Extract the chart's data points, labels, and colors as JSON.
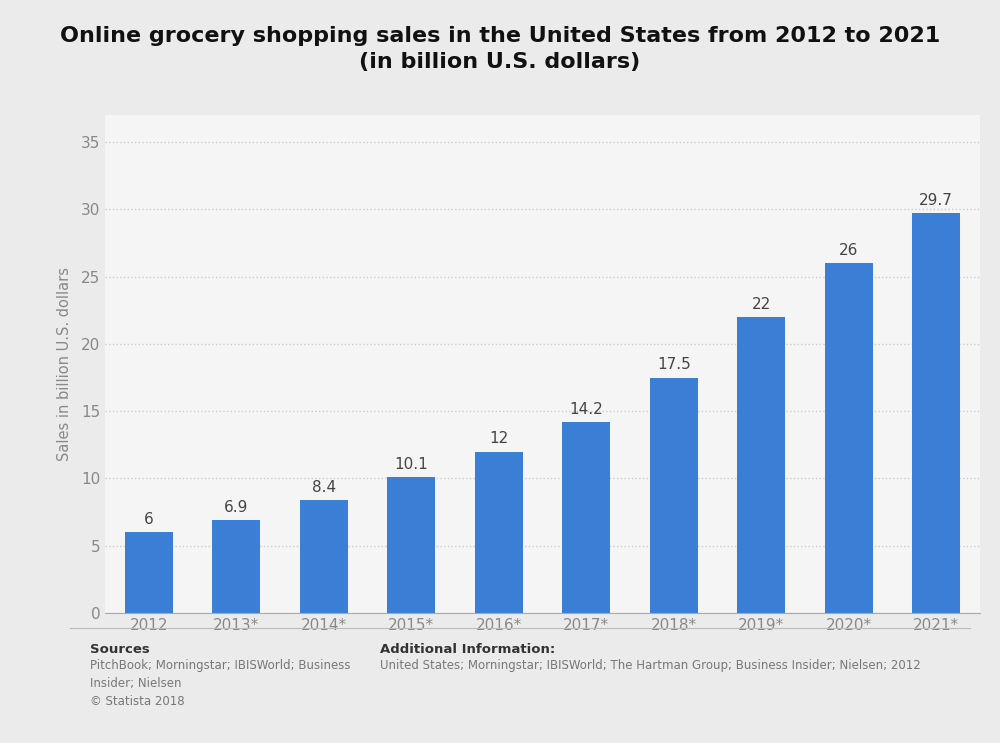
{
  "title_line1": "Online grocery shopping sales in the United States from 2012 to 2021",
  "title_line2": "(in billion U.S. dollars)",
  "categories": [
    "2012",
    "2013*",
    "2014*",
    "2015*",
    "2016*",
    "2017*",
    "2018*",
    "2019*",
    "2020*",
    "2021*"
  ],
  "values": [
    6,
    6.9,
    8.4,
    10.1,
    12,
    14.2,
    17.5,
    22,
    26,
    29.7
  ],
  "bar_color": "#3a7fd5",
  "background_color": "#ebebeb",
  "column_bg_color": "#f5f5f5",
  "ylabel": "Sales in billion U.S. dollars",
  "yticks": [
    0,
    5,
    10,
    15,
    20,
    25,
    30,
    35
  ],
  "ylim": [
    0,
    37
  ],
  "sources_bold": "Sources",
  "sources_text": "PitchBook; Morningstar; IBISWorld; Business\nInsider; Nielsen\n© Statista 2018",
  "additional_bold": "Additional Information:",
  "additional_text": "United States; Morningstar; IBISWorld; The Hartman Group; Business Insider; Nielsen; 2012",
  "grid_color": "#cccccc",
  "tick_color": "#888888",
  "label_fontsize": 11,
  "bar_label_fontsize": 11,
  "title_fontsize": 16,
  "ylabel_fontsize": 10.5
}
